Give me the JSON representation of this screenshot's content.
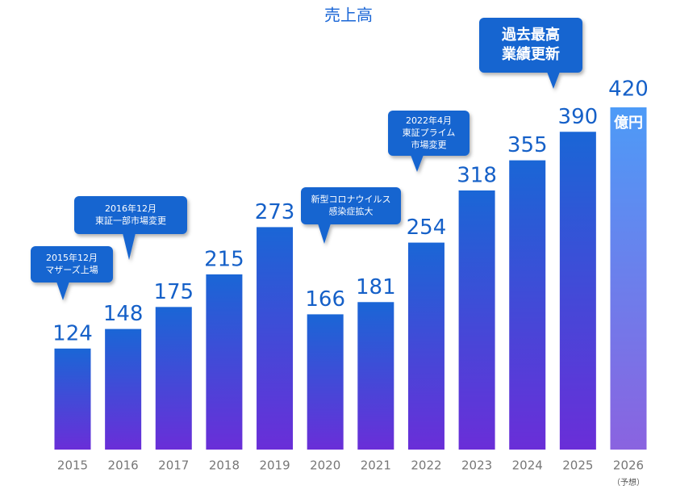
{
  "chart_data": {
    "type": "bar",
    "title": "売上高",
    "categories": [
      "2015",
      "2016",
      "2017",
      "2018",
      "2019",
      "2020",
      "2021",
      "2022",
      "2023",
      "2024",
      "2025",
      "2026"
    ],
    "values": [
      124,
      148,
      175,
      215,
      273,
      166,
      181,
      254,
      318,
      355,
      390,
      420
    ],
    "unit": "億円",
    "forecast_note": "（予想）",
    "colors": {
      "top": "#1a66d6",
      "bottom": "#6a2ed8",
      "forecast_top": "#4d9bf7",
      "forecast_bottom": "#8a63e0",
      "label": "#1560c8"
    },
    "annotations": [
      [
        "2015年12月",
        "マザーズ上場"
      ],
      [
        "2016年12月",
        "東証一部市場変更"
      ],
      [
        "新型コロナウイルス",
        "感染症拡大"
      ],
      [
        "2022年4月",
        "東証プライム",
        "市場変更"
      ],
      [
        "過去最高",
        "業績更新"
      ]
    ]
  }
}
